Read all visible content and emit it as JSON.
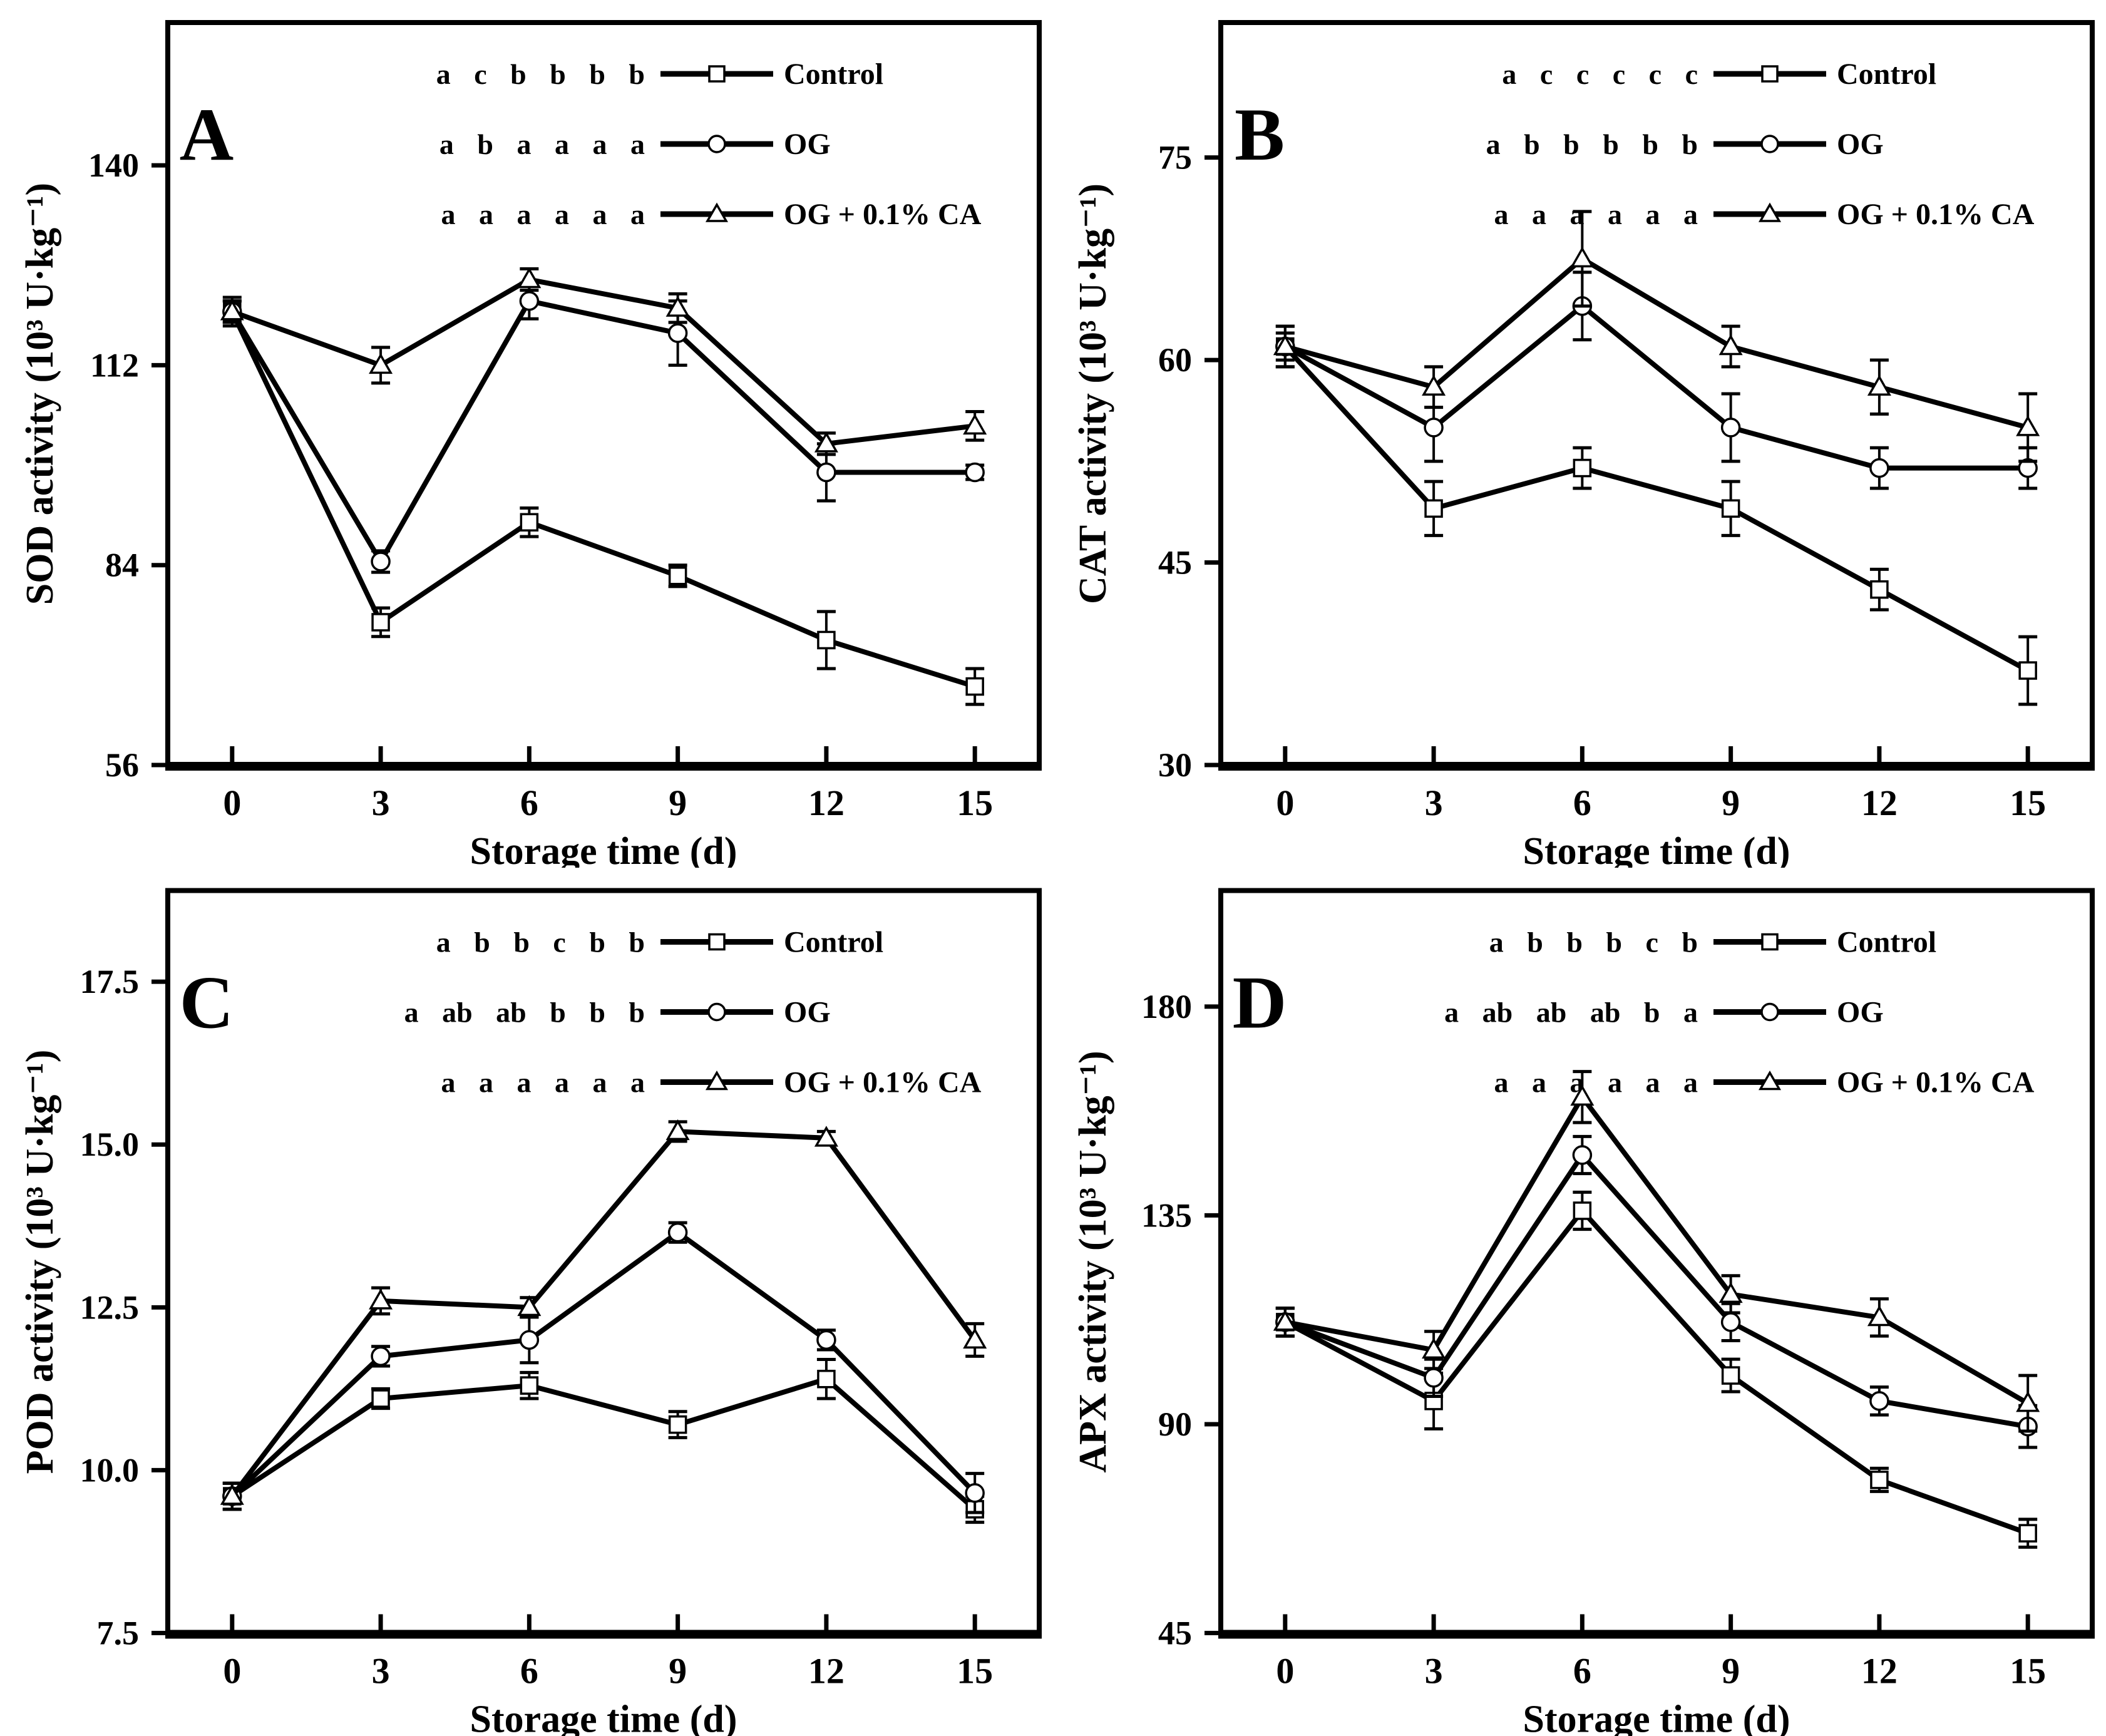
{
  "page": {
    "background": "#ffffff",
    "line_color": "#000000",
    "marker_fill": "#ffffff"
  },
  "figure": {
    "xlabel": "Storage time (d)",
    "x_categories": [
      0,
      3,
      6,
      9,
      12,
      15
    ],
    "panels_order": [
      "A",
      "B",
      "C",
      "D"
    ],
    "series_names": [
      "Control",
      "OG",
      "OG + 0.1% CA"
    ],
    "marker_icons": [
      "square-marker-icon",
      "circle-marker-icon",
      "triangle-marker-icon"
    ]
  },
  "chart_data": [
    {
      "type": "line",
      "panel": "A",
      "ylabel": "SOD activity (10³ U·kg⁻¹)",
      "xlabel": "Storage time (d)",
      "x": [
        0,
        3,
        6,
        9,
        12,
        15
      ],
      "xlim": [
        -1.3,
        16.3
      ],
      "ylim": [
        56,
        160
      ],
      "y_ticks": [
        56,
        84,
        112,
        140
      ],
      "y_tick_decimals": 0,
      "grid": false,
      "legend_position": "top-inside",
      "series": [
        {
          "name": "Control",
          "marker": "square",
          "sig_letters": "a c b b b b",
          "values": [
            119.5,
            76,
            90,
            82.5,
            73.5,
            67
          ],
          "errors": [
            1.5,
            2,
            2,
            1.5,
            4,
            2.5
          ]
        },
        {
          "name": "OG",
          "marker": "circle",
          "sig_letters": "a b a a a a",
          "values": [
            119.5,
            84.5,
            121,
            116.5,
            97,
            97
          ],
          "errors": [
            1.5,
            1.5,
            2.5,
            4.5,
            4,
            1
          ]
        },
        {
          "name": "OG + 0.1% CA",
          "marker": "triangle",
          "sig_letters": "a a a a a a",
          "values": [
            119.5,
            112,
            124,
            120,
            101,
            103.5
          ],
          "errors": [
            2,
            2.5,
            1.5,
            2,
            1.5,
            2
          ]
        }
      ]
    },
    {
      "type": "line",
      "panel": "B",
      "ylabel": "CAT activity (10³ U·kg⁻¹)",
      "xlabel": "Storage time (d)",
      "x": [
        0,
        3,
        6,
        9,
        12,
        15
      ],
      "xlim": [
        -1.3,
        16.3
      ],
      "ylim": [
        30,
        85
      ],
      "y_ticks": [
        30,
        45,
        60,
        75
      ],
      "y_tick_decimals": 0,
      "grid": false,
      "legend_position": "top-inside",
      "series": [
        {
          "name": "Control",
          "marker": "square",
          "sig_letters": "a c c c c c",
          "values": [
            61,
            49,
            52,
            49,
            43,
            37
          ],
          "errors": [
            1.5,
            2,
            1.5,
            2,
            1.5,
            2.5
          ]
        },
        {
          "name": "OG",
          "marker": "circle",
          "sig_letters": "a b b b b b",
          "values": [
            61,
            55,
            64,
            55,
            52,
            52
          ],
          "errors": [
            1,
            2.5,
            2.5,
            2.5,
            1.5,
            1.5
          ]
        },
        {
          "name": "OG + 0.1% CA",
          "marker": "triangle",
          "sig_letters": "a a a a a a",
          "values": [
            61,
            58,
            67.5,
            61,
            58,
            55
          ],
          "errors": [
            1.5,
            1.5,
            3.5,
            1.5,
            2,
            2.5
          ]
        }
      ]
    },
    {
      "type": "line",
      "panel": "C",
      "ylabel": "POD activity (10³ U·kg⁻¹)",
      "xlabel": "Storage time (d)",
      "x": [
        0,
        3,
        6,
        9,
        12,
        15
      ],
      "xlim": [
        -1.3,
        16.3
      ],
      "ylim": [
        7.5,
        18.9
      ],
      "y_ticks": [
        7.5,
        10.0,
        12.5,
        15.0,
        17.5
      ],
      "y_tick_decimals": 1,
      "grid": false,
      "legend_position": "top-inside",
      "series": [
        {
          "name": "Control",
          "marker": "square",
          "sig_letters": "a b b c b b",
          "values": [
            9.6,
            11.1,
            11.3,
            10.7,
            11.4,
            9.4
          ],
          "errors": [
            0.2,
            0.15,
            0.2,
            0.2,
            0.3,
            0.2
          ]
        },
        {
          "name": "OG",
          "marker": "circle",
          "sig_letters": "a ab ab b b b",
          "values": [
            9.6,
            11.75,
            12.0,
            13.65,
            12.0,
            9.65
          ],
          "errors": [
            0.2,
            0.15,
            0.35,
            0.15,
            0.15,
            0.3
          ]
        },
        {
          "name": "OG + 0.1% CA",
          "marker": "triangle",
          "sig_letters": "a a a a a a",
          "values": [
            9.6,
            12.6,
            12.5,
            15.2,
            15.1,
            12.0
          ],
          "errors": [
            0.2,
            0.2,
            0.15,
            0.15,
            0.1,
            0.25
          ]
        }
      ]
    },
    {
      "type": "line",
      "panel": "D",
      "ylabel": "APX activity (10³ U·kg⁻¹)",
      "xlabel": "Storage time (d)",
      "x": [
        0,
        3,
        6,
        9,
        12,
        15
      ],
      "xlim": [
        -1.3,
        16.3
      ],
      "ylim": [
        45,
        205
      ],
      "y_ticks": [
        45,
        90,
        135,
        180
      ],
      "y_tick_decimals": 0,
      "grid": false,
      "legend_position": "top-inside",
      "series": [
        {
          "name": "Control",
          "marker": "square",
          "sig_letters": "a b b b c b",
          "values": [
            112,
            95,
            136,
            100.5,
            78,
            66.5
          ],
          "errors": [
            3,
            6,
            4,
            3.5,
            2.5,
            3
          ]
        },
        {
          "name": "OG",
          "marker": "circle",
          "sig_letters": "a ab ab ab b a",
          "values": [
            112,
            100,
            148,
            112,
            95,
            89.5
          ],
          "errors": [
            3,
            4,
            4,
            4,
            3,
            4.5
          ]
        },
        {
          "name": "OG + 0.1% CA",
          "marker": "triangle",
          "sig_letters": "a a a a a a",
          "values": [
            112,
            106,
            160.5,
            118,
            113,
            94.5
          ],
          "errors": [
            3,
            4,
            5.5,
            4,
            4,
            6
          ]
        }
      ]
    }
  ]
}
